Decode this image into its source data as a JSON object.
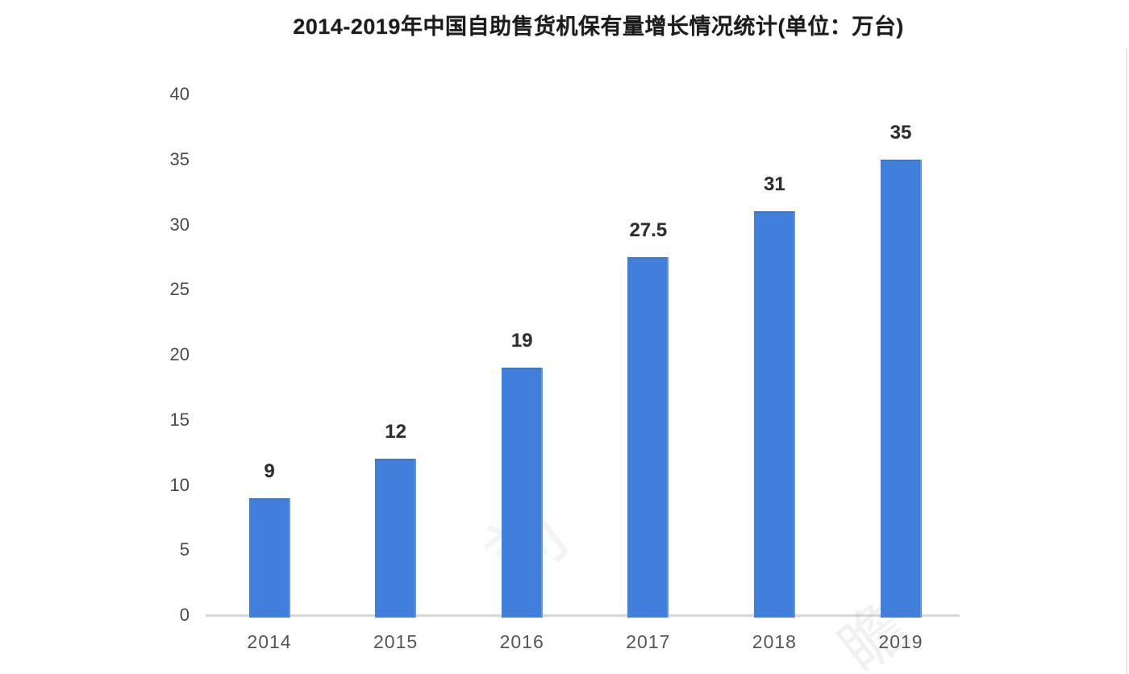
{
  "chart_data": {
    "type": "bar",
    "title": "2014-2019年中国自助售货机保有量增长情况统计(单位：万台)",
    "categories": [
      "2014",
      "2015",
      "2016",
      "2017",
      "2018",
      "2019"
    ],
    "values": [
      9,
      12,
      19,
      27.5,
      31,
      35
    ],
    "value_labels": [
      "9",
      "12",
      "19",
      "27.5",
      "31",
      "35"
    ],
    "xlabel": "",
    "ylabel": "",
    "unit": "万台",
    "ylim": [
      0,
      40
    ],
    "yticks": [
      0,
      5,
      10,
      15,
      20,
      25,
      30,
      35,
      40
    ],
    "grid": false,
    "legend": "none",
    "bar_color": "#4080dc",
    "axis_line_color": "#d8d8d8",
    "title_color": "#1c1c1c",
    "tick_color": "#4a4a4a",
    "value_label_color": "#2e2e2e",
    "background_color": "#ffffff"
  },
  "watermark": {
    "glyphs": [
      "前",
      "前",
      "瞻"
    ]
  }
}
